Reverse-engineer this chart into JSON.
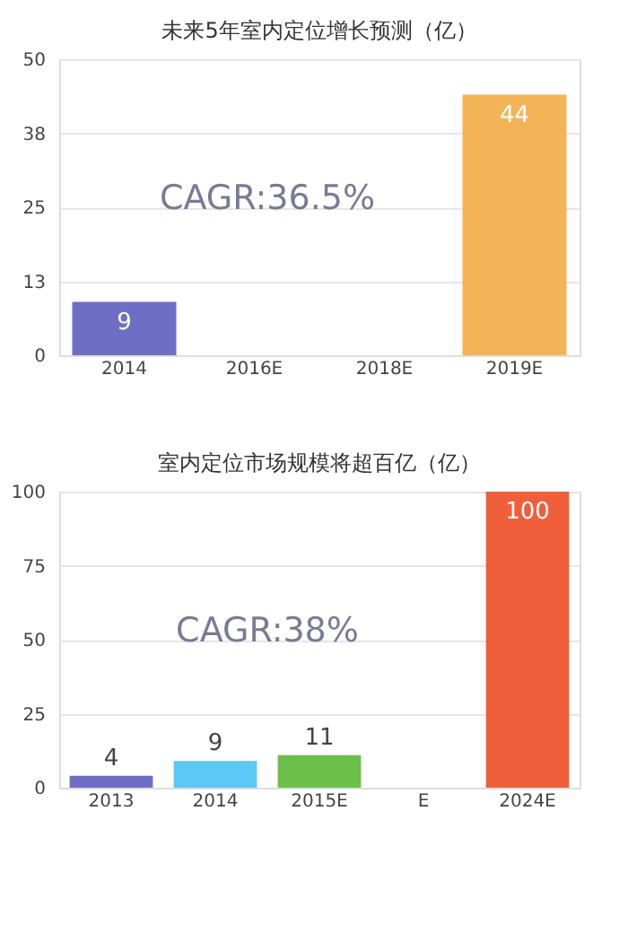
{
  "chart_data": [
    {
      "type": "bar",
      "title": "未来5年室内定位增长预测（亿）",
      "categories": [
        "2014",
        "2016E",
        "2018E",
        "2019E"
      ],
      "values": [
        9,
        null,
        null,
        44
      ],
      "colors": [
        "#6e6fc4",
        null,
        null,
        "#f2b457"
      ],
      "ylim": [
        0,
        50
      ],
      "yticks": [
        0,
        {
          "value": 12.5,
          "label": "13"
        },
        25,
        {
          "value": 37.5,
          "label": "38"
        },
        50
      ],
      "grid": "y",
      "data_labels": true,
      "annotations": [
        "CAGR:36.5%"
      ]
    },
    {
      "type": "bar",
      "title": "室内定位市场规模将超百亿（亿）",
      "categories": [
        "2013",
        "2014",
        "2015E",
        "E",
        "2024E"
      ],
      "values": [
        4,
        9,
        11,
        null,
        100
      ],
      "colors": [
        "#6e6fc4",
        "#5cc8f5",
        "#6cc04a",
        null,
        "#ef5f3c"
      ],
      "ylim": [
        0,
        100
      ],
      "yticks": [
        0,
        25,
        50,
        75,
        100
      ],
      "grid": "y",
      "data_labels": true,
      "annotations": [
        "CAGR:38%"
      ]
    }
  ]
}
